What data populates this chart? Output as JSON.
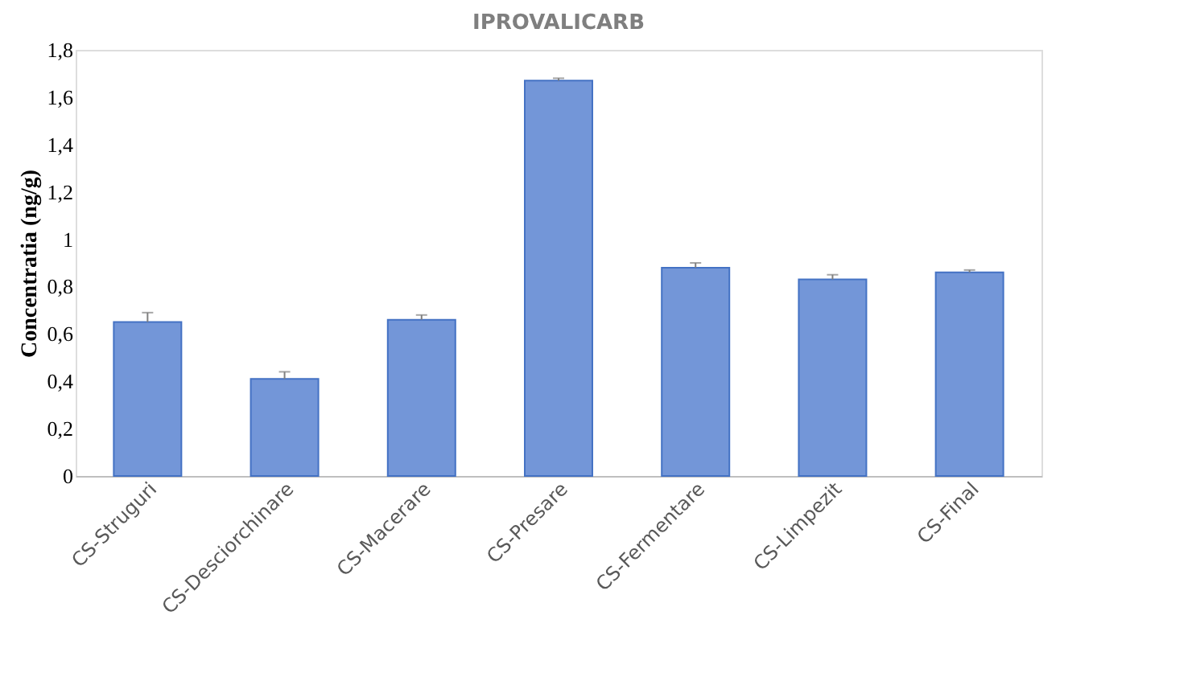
{
  "chart_data": {
    "type": "bar",
    "title": "IPROVALICARB",
    "ylabel": "Concentratia (ng/g)",
    "categories": [
      "CS-Struguri",
      "CS-Desciorchinare",
      "CS-Macerare",
      "CS-Presare",
      "CS-Fermentare",
      "CS-Limpezit",
      "CS-Final"
    ],
    "values": [
      0.65,
      0.41,
      0.66,
      1.67,
      0.88,
      0.83,
      0.86
    ],
    "errors": [
      [
        0.65,
        0.69
      ],
      [
        0.41,
        0.44
      ],
      [
        0.66,
        0.68
      ],
      [
        1.67,
        1.68
      ],
      [
        0.88,
        0.9
      ],
      [
        0.83,
        0.85
      ],
      [
        0.86,
        0.87
      ]
    ],
    "color": "#7396d8",
    "ylim": [
      0,
      1.8
    ],
    "yticks": [
      0,
      {
        "value": 0.2,
        "label": "0,2"
      },
      {
        "value": 0.4,
        "label": "0,4"
      },
      {
        "value": 0.6,
        "label": "0,6"
      },
      {
        "value": 0.8,
        "label": "0,8"
      },
      1,
      {
        "value": 1.2,
        "label": "1,2"
      },
      {
        "value": 1.4,
        "label": "1,4"
      },
      {
        "value": 1.6,
        "label": "1,6"
      },
      {
        "value": 1.8,
        "label": "1,8"
      }
    ],
    "grid": false
  }
}
